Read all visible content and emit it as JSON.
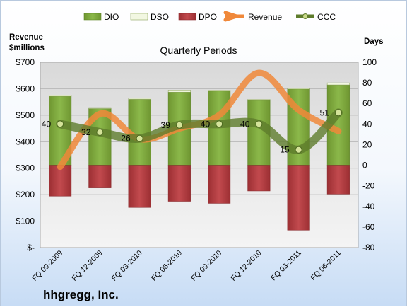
{
  "company": "hhgregg, Inc.",
  "chart_data": {
    "type": "bar",
    "title": "Quarterly Periods",
    "left_axis_title": [
      "Revenue",
      "$millions"
    ],
    "right_axis_title": "Days",
    "categories": [
      "FQ 09-2009",
      "FQ 12-2009",
      "FQ 03-2010",
      "FQ 06-2010",
      "FQ 09-2010",
      "FQ 12-2010",
      "FQ 03-2011",
      "FQ 06-2011"
    ],
    "left_ticks": [
      "$-",
      "$100",
      "$200",
      "$300",
      "$400",
      "$500",
      "$600",
      "$700"
    ],
    "left_range": [
      0,
      700
    ],
    "right_range": [
      -80,
      100
    ],
    "right_ticks": [
      -80,
      -60,
      -40,
      -20,
      0,
      20,
      40,
      60,
      80,
      100
    ],
    "series": [
      {
        "name": "DIO",
        "axis": "days",
        "kind": "stacked-bar",
        "color": "#7fa63e",
        "values": [
          67,
          55,
          64,
          71,
          72,
          63,
          74,
          78
        ]
      },
      {
        "name": "DSO",
        "axis": "days",
        "kind": "stacked-bar",
        "color": "#f2f7e2",
        "values": [
          1,
          1,
          1,
          2,
          1,
          1,
          1,
          2
        ]
      },
      {
        "name": "DPO",
        "axis": "days",
        "kind": "bar-negative",
        "color": "#b23a3e",
        "values": [
          -30,
          -22,
          -41,
          -35,
          -37,
          -25,
          -63,
          -28
        ]
      },
      {
        "name": "Revenue",
        "axis": "revenue",
        "kind": "line",
        "color": "#f0883a",
        "values": [
          305,
          505,
          410,
          450,
          500,
          660,
          520,
          440
        ]
      },
      {
        "name": "CCC",
        "axis": "days",
        "kind": "line",
        "color": "#5e7c2c",
        "values": [
          40,
          32,
          26,
          39,
          40,
          40,
          15,
          51
        ]
      }
    ],
    "ccc_labels": [
      "40",
      "32",
      "26",
      "39",
      "40",
      "40",
      "15",
      "51"
    ],
    "grid": true,
    "legend_position": "top"
  }
}
